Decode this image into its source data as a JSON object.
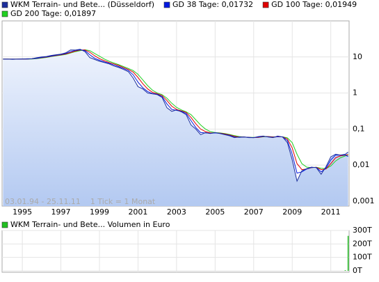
{
  "chart_data": [
    {
      "type": "line",
      "log_scale": true,
      "grid": true,
      "annotation": "03.01.94 - 25.11.11    1 Tick = 1 Monat",
      "x": [
        1994,
        1994.25,
        1994.5,
        1994.75,
        1995,
        1995.25,
        1995.5,
        1995.75,
        1996,
        1996.25,
        1996.5,
        1996.75,
        1997,
        1997.25,
        1997.5,
        1997.75,
        1998,
        1998.25,
        1998.5,
        1998.75,
        1999,
        1999.25,
        1999.5,
        1999.75,
        2000,
        2000.25,
        2000.5,
        2000.75,
        2001,
        2001.25,
        2001.5,
        2001.75,
        2002,
        2002.25,
        2002.5,
        2002.75,
        2003,
        2003.25,
        2003.5,
        2003.75,
        2004,
        2004.25,
        2004.5,
        2004.75,
        2005,
        2005.25,
        2005.5,
        2005.75,
        2006,
        2006.25,
        2006.5,
        2006.75,
        2007,
        2007.25,
        2007.5,
        2007.75,
        2008,
        2008.25,
        2008.5,
        2008.75,
        2009,
        2009.25,
        2009.5,
        2009.75,
        2010,
        2010.25,
        2010.5,
        2010.75,
        2011,
        2011.25,
        2011.5,
        2011.75,
        2011.9
      ],
      "xlim": [
        1993.95,
        2011.95
      ],
      "xticks": [
        1995,
        1997,
        1999,
        2001,
        2003,
        2005,
        2007,
        2009,
        2011
      ],
      "ylim": [
        0.00073,
        100
      ],
      "yticks": [
        {
          "value": 0.001,
          "label": "0,001"
        },
        {
          "value": 0.01,
          "label": "0,01"
        },
        {
          "value": 0.1,
          "label": "0,1"
        },
        1,
        10
      ],
      "series": [
        {
          "name": "WKM Terrain- und Bete... (Düsseldorf)",
          "color": "#1c2e9c",
          "area": true,
          "values": [
            8.7,
            8.7,
            8.6,
            8.7,
            8.8,
            8.9,
            9.0,
            9.5,
            10,
            10.3,
            11,
            11.5,
            12,
            13,
            15.6,
            15.5,
            16.3,
            14,
            9.6,
            8.5,
            7.6,
            7,
            6.4,
            5.6,
            5.1,
            4.5,
            3.9,
            2.6,
            1.5,
            1.3,
            1.0,
            0.95,
            0.9,
            0.75,
            0.39,
            0.31,
            0.34,
            0.3,
            0.25,
            0.13,
            0.1,
            0.07,
            0.08,
            0.075,
            0.08,
            0.075,
            0.07,
            0.065,
            0.058,
            0.06,
            0.06,
            0.058,
            0.058,
            0.062,
            0.064,
            0.06,
            0.058,
            0.064,
            0.06,
            0.042,
            0.014,
            0.0036,
            0.007,
            0.008,
            0.0088,
            0.0085,
            0.0056,
            0.009,
            0.017,
            0.02,
            0.019,
            0.02,
            0.023
          ]
        },
        {
          "name": "GD 38 Tage: 0,01732",
          "color": "#0018e0",
          "values": [
            8.7,
            8.7,
            8.7,
            8.7,
            8.8,
            8.8,
            8.9,
            9.2,
            9.7,
            10.1,
            10.6,
            11.2,
            11.7,
            12.5,
            14,
            15.2,
            15.8,
            15,
            11.5,
            9.2,
            8.1,
            7.3,
            6.7,
            6,
            5.4,
            4.8,
            4.2,
            3.2,
            2,
            1.4,
            1.1,
            0.97,
            0.92,
            0.8,
            0.5,
            0.35,
            0.33,
            0.31,
            0.27,
            0.17,
            0.11,
            0.08,
            0.078,
            0.076,
            0.078,
            0.076,
            0.071,
            0.067,
            0.06,
            0.059,
            0.06,
            0.059,
            0.058,
            0.06,
            0.063,
            0.061,
            0.059,
            0.062,
            0.061,
            0.048,
            0.02,
            0.006,
            0.0065,
            0.0078,
            0.0086,
            0.0086,
            0.0065,
            0.0082,
            0.014,
            0.019,
            0.019,
            0.019,
            0.0173
          ]
        },
        {
          "name": "GD 100 Tage: 0,01949",
          "color": "#e00000",
          "values": [
            8.7,
            8.7,
            8.7,
            8.7,
            8.7,
            8.8,
            8.9,
            9.1,
            9.5,
            9.9,
            10.4,
            10.9,
            11.4,
            12.1,
            13.2,
            14.5,
            15.5,
            15.6,
            13.5,
            10.8,
            9,
            7.9,
            7,
            6.4,
            5.8,
            5.1,
            4.5,
            3.8,
            2.7,
            1.8,
            1.3,
            1.05,
            0.95,
            0.85,
            0.62,
            0.43,
            0.35,
            0.32,
            0.29,
            0.21,
            0.14,
            0.1,
            0.085,
            0.079,
            0.078,
            0.077,
            0.073,
            0.069,
            0.063,
            0.06,
            0.06,
            0.059,
            0.058,
            0.059,
            0.062,
            0.062,
            0.06,
            0.061,
            0.061,
            0.053,
            0.03,
            0.011,
            0.0075,
            0.0078,
            0.0085,
            0.0087,
            0.0075,
            0.0078,
            0.011,
            0.016,
            0.018,
            0.019,
            0.0195
          ]
        },
        {
          "name": "GD 200 Tage: 0,01897",
          "color": "#22d022",
          "values": [
            8.7,
            8.7,
            8.7,
            8.7,
            8.7,
            8.7,
            8.8,
            9,
            9.3,
            9.7,
            10.2,
            10.7,
            11.2,
            11.8,
            12.8,
            14,
            15,
            15.8,
            15,
            12.5,
            10.5,
            8.8,
            7.6,
            6.8,
            6.1,
            5.4,
            4.8,
            4.2,
            3.3,
            2.3,
            1.6,
            1.2,
            1.0,
            0.9,
            0.72,
            0.52,
            0.4,
            0.34,
            0.3,
            0.25,
            0.18,
            0.13,
            0.1,
            0.085,
            0.08,
            0.078,
            0.075,
            0.071,
            0.066,
            0.062,
            0.06,
            0.059,
            0.059,
            0.059,
            0.061,
            0.062,
            0.061,
            0.061,
            0.061,
            0.057,
            0.042,
            0.02,
            0.011,
            0.0088,
            0.0085,
            0.0087,
            0.0082,
            0.008,
            0.0095,
            0.013,
            0.016,
            0.018,
            0.019
          ]
        }
      ]
    },
    {
      "type": "bar",
      "x": [
        2011.5,
        2011.75,
        2011.9
      ],
      "xlim": [
        1993.95,
        2011.95
      ],
      "ylim": [
        0,
        300
      ],
      "yticks": [
        {
          "value": 0,
          "label": "0T"
        },
        {
          "value": 100,
          "label": "100T"
        },
        {
          "value": 200,
          "label": "200T"
        },
        {
          "value": 300,
          "label": "300T"
        }
      ],
      "series": [
        {
          "name": "WKM Terrain- und Bete... Volumen in Euro",
          "color": "#22c022",
          "values": [
            0,
            5,
            260
          ]
        }
      ]
    }
  ]
}
